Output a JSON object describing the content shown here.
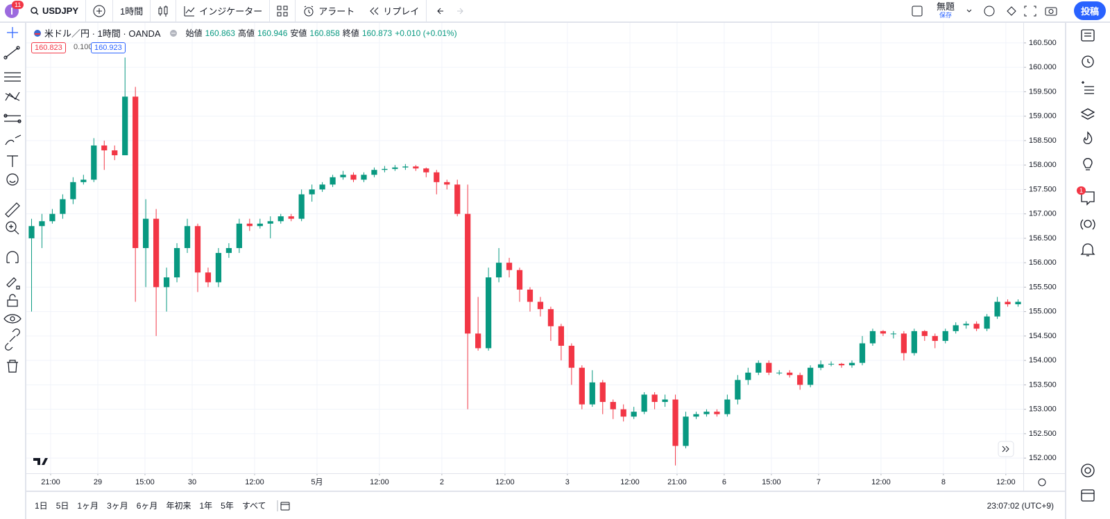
{
  "toolbar": {
    "badge": "11",
    "symbol": "USDJPY",
    "interval": "1時間",
    "indicators": "インジケーター",
    "alert": "アラート",
    "replay": "リプレイ",
    "layout_name": "無題",
    "save": "保存",
    "publish": "投稿"
  },
  "legend": {
    "title": "米ドル／円 · 1時間 · OANDA",
    "open_label": "始値",
    "open": "160.863",
    "high_label": "高値",
    "high": "160.946",
    "low_label": "安値",
    "low": "160.858",
    "close_label": "終値",
    "close": "160.873",
    "change": "+0.010 (+0.01%)",
    "bid": "160.823",
    "spread": "0.100",
    "ask": "160.923"
  },
  "right_toolbar": {
    "badge": "1"
  },
  "bottom_bar": {
    "ranges": [
      "1日",
      "5日",
      "1ヶ月",
      "3ヶ月",
      "6ヶ月",
      "年初来",
      "1年",
      "5年",
      "すべて"
    ],
    "clock": "23:07:02 (UTC+9)"
  },
  "chart_data": {
    "type": "candlestick",
    "up_color": "#089981",
    "down_color": "#f23645",
    "grid": true,
    "xlim": [
      0,
      96
    ],
    "ylim": [
      151.69,
      160.91
    ],
    "xticks": [
      {
        "value": 2.34,
        "label": "21:00"
      },
      {
        "value": 6.88,
        "label": "29"
      },
      {
        "value": 11.42,
        "label": "15:00"
      },
      {
        "value": 15.97,
        "label": "30"
      },
      {
        "value": 21.98,
        "label": "12:00"
      },
      {
        "value": 27.99,
        "label": "5月"
      },
      {
        "value": 34.0,
        "label": "12:00"
      },
      {
        "value": 40.01,
        "label": "2"
      },
      {
        "value": 46.09,
        "label": "12:00"
      },
      {
        "value": 52.1,
        "label": "3"
      },
      {
        "value": 58.12,
        "label": "12:00"
      },
      {
        "value": 62.66,
        "label": "21:00"
      },
      {
        "value": 67.2,
        "label": "6"
      },
      {
        "value": 71.74,
        "label": "15:00"
      },
      {
        "value": 76.29,
        "label": "7"
      },
      {
        "value": 82.3,
        "label": "12:00"
      },
      {
        "value": 88.31,
        "label": "8"
      },
      {
        "value": 94.32,
        "label": "12:00"
      }
    ],
    "yticks": [
      {
        "value": 152,
        "label": "152.000"
      },
      {
        "value": 152.5,
        "label": "152.500"
      },
      {
        "value": 153,
        "label": "153.000"
      },
      {
        "value": 153.5,
        "label": "153.500"
      },
      {
        "value": 154,
        "label": "154.000"
      },
      {
        "value": 154.5,
        "label": "154.500"
      },
      {
        "value": 155,
        "label": "155.000"
      },
      {
        "value": 155.5,
        "label": "155.500"
      },
      {
        "value": 156,
        "label": "156.000"
      },
      {
        "value": 156.5,
        "label": "156.500"
      },
      {
        "value": 157,
        "label": "157.000"
      },
      {
        "value": 157.5,
        "label": "157.500"
      },
      {
        "value": 158,
        "label": "158.000"
      },
      {
        "value": 158.5,
        "label": "158.500"
      },
      {
        "value": 159,
        "label": "159.000"
      },
      {
        "value": 159.5,
        "label": "159.500"
      },
      {
        "value": 160,
        "label": "160.000"
      },
      {
        "value": 160.5,
        "label": "160.500"
      }
    ],
    "open": [
      156.5,
      156.75,
      156.85,
      157.0,
      157.3,
      157.65,
      157.7,
      158.4,
      158.3,
      158.2,
      159.4,
      156.3,
      156.9,
      155.5,
      155.7,
      156.3,
      156.75,
      155.8,
      155.6,
      156.2,
      156.3,
      156.8,
      156.75,
      156.8,
      156.85,
      156.95,
      156.9,
      157.4,
      157.5,
      157.6,
      157.75,
      157.8,
      157.7,
      157.8,
      157.9,
      157.92,
      157.95,
      157.97,
      157.93,
      157.85,
      157.65,
      157.6,
      157.0,
      154.55,
      154.25,
      155.7,
      156.0,
      155.85,
      155.45,
      155.2,
      155.05,
      154.7,
      154.3,
      153.85,
      153.1,
      153.55,
      153.15,
      153.0,
      152.85,
      152.95,
      153.3,
      153.15,
      153.2,
      152.25,
      152.85,
      152.9,
      152.95,
      152.9,
      153.2,
      153.6,
      153.75,
      153.95,
      153.75,
      153.75,
      153.7,
      153.5,
      153.85,
      153.92,
      153.93,
      153.9,
      153.95,
      154.35,
      154.6,
      154.55,
      154.55,
      154.15,
      154.6,
      154.5,
      154.4,
      154.6,
      154.72,
      154.75,
      154.65,
      154.9,
      155.2,
      155.15
    ],
    "high": [
      156.9,
      157.0,
      157.1,
      157.4,
      157.75,
      157.8,
      158.55,
      158.5,
      158.4,
      160.2,
      159.6,
      157.3,
      157.1,
      155.9,
      156.4,
      156.9,
      156.8,
      155.9,
      156.3,
      156.4,
      156.9,
      156.9,
      156.9,
      156.95,
      157.0,
      157.0,
      157.5,
      157.6,
      157.65,
      157.8,
      157.88,
      157.85,
      157.85,
      157.95,
      157.98,
      158.0,
      158.02,
      158.0,
      157.95,
      157.9,
      157.7,
      157.7,
      157.6,
      155.3,
      155.9,
      156.3,
      156.1,
      155.9,
      155.5,
      155.3,
      155.1,
      154.75,
      154.35,
      153.9,
      153.8,
      153.6,
      153.2,
      153.1,
      153.05,
      153.35,
      153.35,
      153.3,
      153.3,
      152.95,
      152.95,
      153.0,
      153.0,
      153.3,
      153.7,
      153.85,
      154.0,
      154.0,
      153.8,
      153.8,
      153.75,
      153.9,
      154.0,
      153.98,
      153.95,
      154.0,
      154.5,
      154.65,
      154.62,
      154.6,
      154.6,
      154.65,
      154.62,
      154.55,
      154.65,
      154.78,
      154.8,
      154.8,
      154.95,
      155.3,
      155.25,
      155.25
    ],
    "low": [
      155.0,
      156.3,
      156.8,
      156.9,
      157.2,
      157.6,
      157.65,
      157.9,
      158.1,
      158.2,
      155.2,
      155.5,
      154.5,
      155.0,
      155.6,
      156.2,
      155.4,
      155.5,
      155.5,
      156.1,
      156.2,
      156.65,
      156.7,
      156.5,
      156.8,
      156.85,
      156.85,
      157.25,
      157.45,
      157.55,
      157.7,
      157.65,
      157.65,
      157.75,
      157.85,
      157.88,
      157.9,
      157.88,
      157.75,
      157.4,
      157.5,
      156.95,
      153.0,
      154.2,
      154.2,
      155.6,
      155.7,
      155.2,
      155.0,
      154.9,
      154.4,
      154.0,
      153.5,
      153.0,
      153.05,
      152.9,
      152.8,
      152.75,
      152.8,
      152.9,
      153.0,
      153.05,
      151.85,
      152.2,
      152.8,
      152.85,
      152.85,
      152.85,
      153.1,
      153.5,
      153.7,
      153.7,
      153.7,
      153.65,
      153.4,
      153.45,
      153.8,
      153.88,
      153.85,
      153.85,
      153.9,
      154.3,
      154.5,
      154.45,
      154.0,
      154.1,
      154.4,
      154.25,
      154.35,
      154.55,
      154.65,
      154.6,
      154.6,
      154.85,
      155.1,
      155.1
    ],
    "close": [
      156.75,
      156.85,
      157.0,
      157.3,
      157.65,
      157.7,
      158.4,
      158.3,
      158.2,
      159.4,
      156.3,
      156.9,
      155.5,
      155.7,
      156.3,
      156.75,
      155.8,
      155.6,
      156.2,
      156.3,
      156.8,
      156.75,
      156.8,
      156.85,
      156.95,
      156.9,
      157.4,
      157.5,
      157.6,
      157.75,
      157.8,
      157.7,
      157.8,
      157.9,
      157.92,
      157.95,
      157.97,
      157.93,
      157.85,
      157.65,
      157.6,
      157.0,
      154.55,
      154.25,
      155.7,
      156.0,
      155.85,
      155.45,
      155.2,
      155.05,
      154.7,
      154.3,
      153.85,
      153.1,
      153.55,
      153.15,
      153.0,
      152.85,
      152.95,
      153.3,
      153.15,
      153.2,
      152.25,
      152.85,
      152.9,
      152.95,
      152.9,
      153.2,
      153.6,
      153.75,
      153.95,
      153.75,
      153.75,
      153.7,
      153.5,
      153.85,
      153.92,
      153.93,
      153.9,
      153.95,
      154.35,
      154.6,
      154.55,
      154.55,
      154.15,
      154.6,
      154.5,
      154.4,
      154.6,
      154.72,
      154.75,
      154.65,
      154.9,
      155.2,
      155.15,
      155.2
    ]
  }
}
